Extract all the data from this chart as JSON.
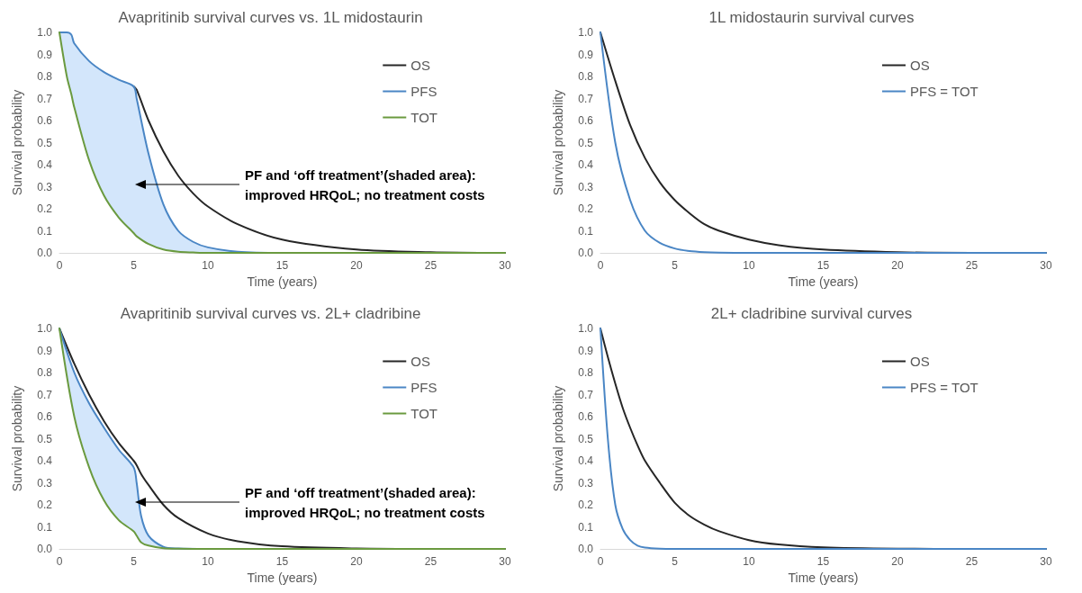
{
  "chart_data": [
    {
      "type": "line",
      "title": "Avapritinib survival curves vs. 1L midostaurin",
      "xlabel": "Time (years)",
      "ylabel": "Survival probability",
      "legend": "top right",
      "line_style": "solid",
      "xlim": [
        0,
        30
      ],
      "xticks": [
        0,
        5,
        10,
        15,
        20,
        25,
        30
      ],
      "ylim": [
        0,
        1
      ],
      "yticks": [
        {
          "value": 0,
          "label": "0.0"
        },
        {
          "value": 0.1,
          "label": "0.1"
        },
        {
          "value": 0.2,
          "label": "0.2"
        },
        {
          "value": 0.3,
          "label": "0.3"
        },
        {
          "value": 0.4,
          "label": "0.4"
        },
        {
          "value": 0.5,
          "label": "0.5"
        },
        {
          "value": 0.6,
          "label": "0.6"
        },
        {
          "value": 0.7,
          "label": "0.7"
        },
        {
          "value": 0.8,
          "label": "0.8"
        },
        {
          "value": 0.9,
          "label": "0.9"
        },
        {
          "value": 1,
          "label": "1.0"
        }
      ],
      "annotations": [
        "PF and ‘off treatment’(shaded area): improved HRQoL; no treatment costs"
      ],
      "x": [
        0,
        0.5,
        0.8,
        1,
        2,
        3,
        4,
        5,
        5.2,
        6,
        7,
        8,
        9,
        10,
        12,
        15,
        20,
        25,
        30
      ],
      "series": [
        {
          "name": "OS",
          "color": "#262626",
          "values": [
            null,
            null,
            null,
            null,
            null,
            null,
            null,
            0.755,
            0.74,
            0.6,
            0.46,
            0.35,
            0.27,
            0.21,
            0.13,
            0.06,
            0.015,
            0.003,
            0
          ]
        },
        {
          "name": "PFS",
          "color": "#4a86c5",
          "values": [
            1,
            1,
            0.99,
            0.95,
            0.87,
            0.82,
            0.785,
            0.755,
            0.7,
            0.45,
            0.22,
            0.1,
            0.05,
            0.025,
            0.005,
            0,
            0,
            null,
            null
          ],
          "upper": [
            1,
            1,
            0.99,
            0.95,
            0.87,
            0.82,
            0.785,
            0.755,
            0.7,
            0.45,
            0.22,
            0.1,
            0.05,
            0.025,
            0.005,
            0,
            0,
            0,
            0
          ],
          "lower": [
            1,
            0.8,
            0.72,
            0.66,
            0.42,
            0.26,
            0.16,
            0.09,
            0.075,
            0.04,
            0.015,
            0.005,
            0.002,
            0,
            0,
            0,
            0,
            0,
            0
          ]
        },
        {
          "name": "TOT",
          "color": "#6a9a3f",
          "values": [
            1,
            0.8,
            0.72,
            0.66,
            0.42,
            0.26,
            0.16,
            0.09,
            0.075,
            0.04,
            0.015,
            0.005,
            0.002,
            0,
            0,
            0,
            0,
            0,
            0
          ]
        }
      ]
    },
    {
      "type": "line",
      "title": "1L midostaurin survival curves",
      "xlabel": "Time (years)",
      "ylabel": "Survival probability",
      "legend": "top right",
      "line_style": "solid",
      "xlim": [
        0,
        30
      ],
      "xticks": [
        0,
        5,
        10,
        15,
        20,
        25,
        30
      ],
      "ylim": [
        0,
        1
      ],
      "yticks": [
        {
          "value": 0,
          "label": "0.0"
        },
        {
          "value": 0.1,
          "label": "0.1"
        },
        {
          "value": 0.2,
          "label": "0.2"
        },
        {
          "value": 0.3,
          "label": "0.3"
        },
        {
          "value": 0.4,
          "label": "0.4"
        },
        {
          "value": 0.5,
          "label": "0.5"
        },
        {
          "value": 0.6,
          "label": "0.6"
        },
        {
          "value": 0.7,
          "label": "0.7"
        },
        {
          "value": 0.8,
          "label": "0.8"
        },
        {
          "value": 0.9,
          "label": "0.9"
        },
        {
          "value": 1,
          "label": "1.0"
        }
      ],
      "x": [
        0,
        1,
        2,
        3,
        4,
        5,
        6,
        7,
        8,
        10,
        12,
        15,
        20,
        25,
        30
      ],
      "series": [
        {
          "name": "OS",
          "color": "#262626",
          "values": [
            1,
            0.78,
            0.58,
            0.43,
            0.32,
            0.24,
            0.18,
            0.13,
            0.1,
            0.06,
            0.035,
            0.015,
            0.003,
            0,
            0
          ]
        },
        {
          "name": "PFS = TOT",
          "color": "#4a86c5",
          "values": [
            1,
            0.5,
            0.24,
            0.1,
            0.045,
            0.02,
            0.008,
            0.003,
            0.001,
            0,
            0,
            0,
            0,
            0,
            0
          ]
        }
      ]
    },
    {
      "type": "line",
      "title": "Avapritinib survival curves vs. 2L+ cladribine",
      "xlabel": "Time (years)",
      "ylabel": "Survival probability",
      "legend": "top right",
      "line_style": "solid",
      "xlim": [
        0,
        30
      ],
      "xticks": [
        0,
        5,
        10,
        15,
        20,
        25,
        30
      ],
      "ylim": [
        0,
        1
      ],
      "yticks": [
        {
          "value": 0,
          "label": "0.0"
        },
        {
          "value": 0.1,
          "label": "0.1"
        },
        {
          "value": 0.2,
          "label": "0.2"
        },
        {
          "value": 0.3,
          "label": "0.3"
        },
        {
          "value": 0.4,
          "label": "0.4"
        },
        {
          "value": 0.5,
          "label": "0.5"
        },
        {
          "value": 0.6,
          "label": "0.6"
        },
        {
          "value": 0.7,
          "label": "0.7"
        },
        {
          "value": 0.8,
          "label": "0.8"
        },
        {
          "value": 0.9,
          "label": "0.9"
        },
        {
          "value": 1,
          "label": "1.0"
        }
      ],
      "annotations": [
        "PF and ‘off treatment’(shaded area): improved HRQoL; no treatment costs"
      ],
      "x": [
        0,
        1,
        2,
        3,
        4,
        5,
        5.2,
        5.5,
        6,
        7,
        8,
        10,
        12,
        15,
        20,
        25,
        30
      ],
      "series": [
        {
          "name": "OS",
          "color": "#262626",
          "values": [
            1,
            0.84,
            0.7,
            0.58,
            0.48,
            0.4,
            0.38,
            0.34,
            0.29,
            0.2,
            0.14,
            0.07,
            0.035,
            0.012,
            0.002,
            0,
            0
          ]
        },
        {
          "name": "PFS",
          "color": "#4a86c5",
          "values": [
            1,
            0.8,
            0.66,
            0.55,
            0.45,
            0.37,
            0.3,
            0.15,
            0.06,
            0.01,
            0.002,
            0,
            null,
            null,
            null,
            null,
            null
          ],
          "upper": [
            1,
            0.8,
            0.66,
            0.55,
            0.45,
            0.37,
            0.3,
            0.15,
            0.06,
            0.01,
            0.002,
            0,
            0,
            0,
            0,
            0,
            0
          ],
          "lower": [
            1,
            0.6,
            0.37,
            0.22,
            0.13,
            0.08,
            0.06,
            0.03,
            0.015,
            0.003,
            0.001,
            0,
            0,
            0,
            0,
            0,
            0
          ]
        },
        {
          "name": "TOT",
          "color": "#6a9a3f",
          "values": [
            1,
            0.6,
            0.37,
            0.22,
            0.13,
            0.08,
            0.06,
            0.03,
            0.015,
            0.003,
            0.001,
            0,
            0,
            0,
            0,
            0,
            0
          ]
        }
      ]
    },
    {
      "type": "line",
      "title": "2L+ cladribine survival curves",
      "xlabel": "Time (years)",
      "ylabel": "Survival probability",
      "legend": "top right",
      "line_style": "solid",
      "xlim": [
        0,
        30
      ],
      "xticks": [
        0,
        5,
        10,
        15,
        20,
        25,
        30
      ],
      "ylim": [
        0,
        1
      ],
      "yticks": [
        {
          "value": 0,
          "label": "0.0"
        },
        {
          "value": 0.1,
          "label": "0.1"
        },
        {
          "value": 0.2,
          "label": "0.2"
        },
        {
          "value": 0.3,
          "label": "0.3"
        },
        {
          "value": 0.4,
          "label": "0.4"
        },
        {
          "value": 0.5,
          "label": "0.5"
        },
        {
          "value": 0.6,
          "label": "0.6"
        },
        {
          "value": 0.7,
          "label": "0.7"
        },
        {
          "value": 0.8,
          "label": "0.8"
        },
        {
          "value": 0.9,
          "label": "0.9"
        },
        {
          "value": 1,
          "label": "1.0"
        }
      ],
      "x": [
        0,
        0.5,
        1,
        1.5,
        2,
        2.5,
        3,
        4,
        5,
        6,
        7,
        8,
        10,
        12,
        15,
        20,
        25,
        30
      ],
      "series": [
        {
          "name": "OS",
          "color": "#262626",
          "values": [
            1,
            0.87,
            0.75,
            0.64,
            0.55,
            0.47,
            0.4,
            0.3,
            0.21,
            0.15,
            0.11,
            0.08,
            0.04,
            0.02,
            0.007,
            0.001,
            0,
            0
          ]
        },
        {
          "name": "PFS = TOT",
          "color": "#4a86c5",
          "values": [
            1,
            0.5,
            0.2,
            0.09,
            0.04,
            0.015,
            0.006,
            0.001,
            0,
            0,
            0,
            0,
            0,
            0,
            0,
            0,
            0,
            0
          ]
        }
      ]
    }
  ]
}
